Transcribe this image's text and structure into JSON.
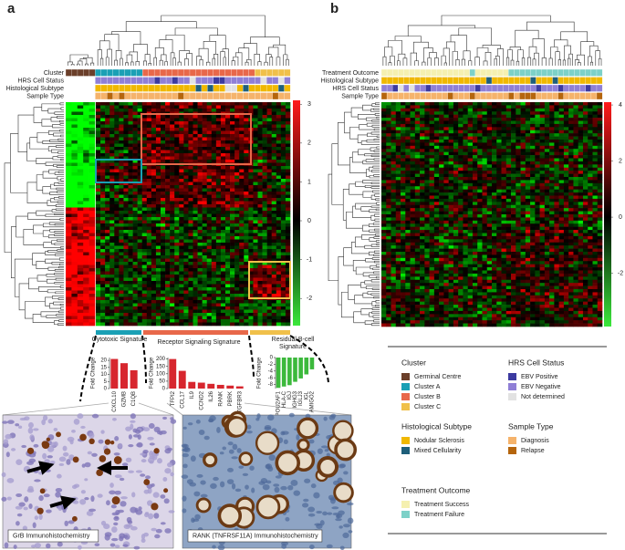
{
  "panel_labels": [
    "a",
    "b"
  ],
  "panel_a": {
    "track_labels": [
      "Cluster",
      "HRS Cell Status",
      "Histological Subtype",
      "Sample Type"
    ],
    "colorbar": {
      "ylim": [
        -2.7,
        3.1
      ],
      "yticks": [
        3,
        2,
        1,
        0,
        -1,
        -2
      ]
    }
  },
  "panel_b": {
    "track_labels": [
      "Treatment Outcome",
      "Histological Subtype",
      "HRS Cell Status",
      "Sample Type"
    ],
    "colorbar": {
      "ylim": [
        -3.9,
        4.1
      ],
      "yticks": [
        4,
        2,
        0,
        -2
      ]
    }
  },
  "chart_data": [
    {
      "type": "bar",
      "title": "Cytotoxic Signature",
      "ylabel": "Fold Change",
      "categories": [
        "CXCL10",
        "GZMB",
        "C1QB"
      ],
      "values": [
        21,
        18,
        13
      ],
      "color": "#d7262e",
      "ylim": [
        0,
        22
      ],
      "yticks": [
        0,
        5,
        10,
        15,
        20
      ]
    },
    {
      "type": "bar",
      "title": "Receptor Signaling Signature",
      "ylabel": "Fold Change",
      "categories": [
        "TFPI2",
        "CCL17",
        "IL9",
        "CCND2",
        "IL26",
        "RANK",
        "PBRK",
        "TGFBR3"
      ],
      "values": [
        200,
        120,
        45,
        40,
        32,
        25,
        20,
        15
      ],
      "color": "#d7262e",
      "ylim": [
        0,
        210
      ],
      "yticks": [
        0,
        50,
        100,
        150,
        200
      ]
    },
    {
      "type": "bar",
      "title": "Residual B-cell Signature",
      "ylabel": "Fold Change",
      "categories": [
        "POU2AF1",
        "HLA-C",
        "IGJ",
        "IGHG3",
        "IGLJ3",
        "IGL",
        "AMIGO2"
      ],
      "values": [
        -9,
        -8.6,
        -8.2,
        -7.2,
        -6.2,
        -5,
        -3.5
      ],
      "color": "#3cb93c",
      "ylim": [
        -9.2,
        0
      ],
      "yticks": [
        0,
        -2,
        -4,
        -6,
        -8
      ]
    }
  ],
  "images": [
    {
      "caption": "GrB Immunohistochemistry"
    },
    {
      "caption": "RANK (TNFRSF11A) Immunohistochemistry"
    }
  ],
  "legend": [
    {
      "title": "Cluster",
      "items": [
        {
          "label": "Germinal Centre",
          "color": "#6b3f2a"
        },
        {
          "label": "Cluster A",
          "color": "#1aa0b5"
        },
        {
          "label": "Cluster B",
          "color": "#e8684a"
        },
        {
          "label": "Cluster C",
          "color": "#f0c04a"
        }
      ]
    },
    {
      "title": "HRS Cell Status",
      "items": [
        {
          "label": "EBV Positive",
          "color": "#3c3aa0"
        },
        {
          "label": "EBV Negative",
          "color": "#8f7fd6"
        },
        {
          "label": "Not determined",
          "color": "#e2e2e2"
        }
      ]
    },
    {
      "title": "Histological Subtype",
      "items": [
        {
          "label": "Nodular Sclerosis",
          "color": "#f0b800"
        },
        {
          "label": "Mixed Cellularity",
          "color": "#1f5f7a"
        }
      ]
    },
    {
      "title": "Sample Type",
      "items": [
        {
          "label": "Diagnosis",
          "color": "#f5b36b"
        },
        {
          "label": "Relapse",
          "color": "#b5650c"
        }
      ]
    },
    {
      "title": "Treatment Outcome",
      "items": [
        {
          "label": "Treatment Success",
          "color": "#f5f0b0"
        },
        {
          "label": "Treatment Failure",
          "color": "#7dd1c8"
        }
      ]
    }
  ]
}
